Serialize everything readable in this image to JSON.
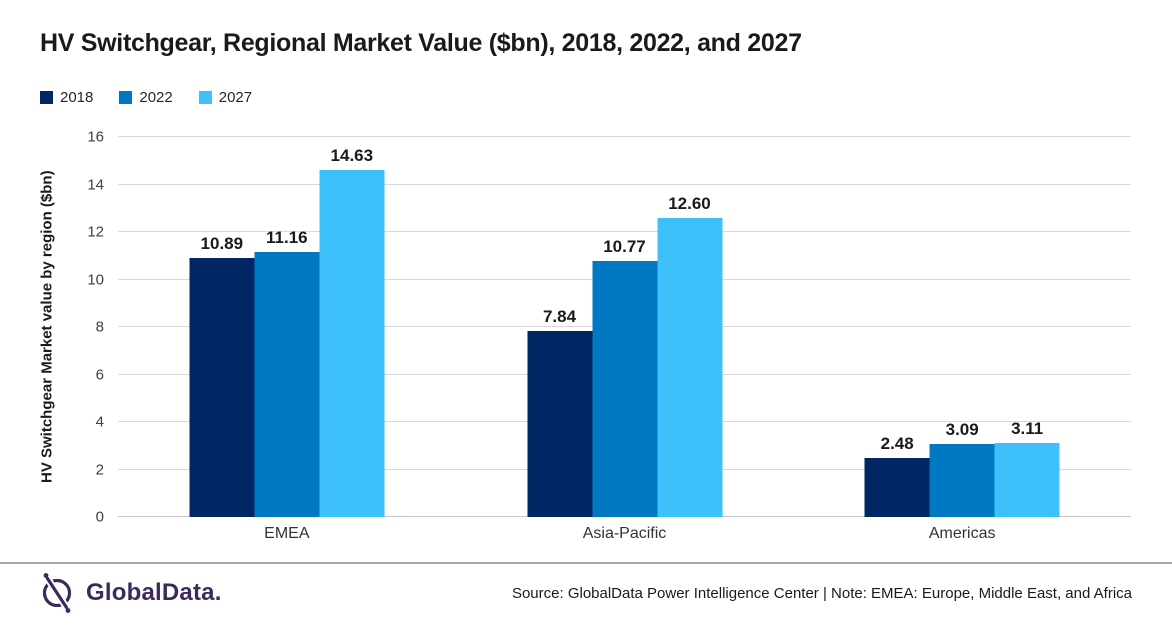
{
  "page": {
    "title": "HV Switchgear, Regional Market Value ($bn), 2018, 2022, and 2027"
  },
  "chart_data": {
    "type": "bar",
    "title": "HV Switchgear, Regional Market Value ($bn), 2018, 2022, and 2027",
    "categories": [
      "EMEA",
      "Asia-Pacific",
      "Americas"
    ],
    "series": [
      {
        "name": "2018",
        "color": "#002664",
        "values": [
          10.89,
          7.84,
          2.48
        ]
      },
      {
        "name": "2022",
        "color": "#0079c2",
        "values": [
          11.16,
          10.77,
          3.09
        ]
      },
      {
        "name": "2027",
        "color": "#3ec1fb",
        "values": [
          14.63,
          12.6,
          3.11
        ]
      }
    ],
    "xlabel": "",
    "ylabel": "HV Switchgear Market value by region ($bn)",
    "ylim": [
      0,
      16
    ],
    "ytick_step": 2,
    "yticks": [
      0,
      2,
      4,
      6,
      8,
      10,
      12,
      14,
      16
    ],
    "grid": true,
    "legend_position": "top-left",
    "value_label_decimals": 2
  },
  "footer": {
    "logo_text": "GlobalData.",
    "source_text": "Source: GlobalData Power Intelligence Center | Note: EMEA: Europe, Middle East, and Africa"
  },
  "colors": {
    "series_2018": "#002664",
    "series_2022": "#0079c2",
    "series_2027": "#3ec1fb",
    "gridline": "#d9d9d9",
    "footer_divider": "#a6a6a6",
    "logo_purple": "#3b2a5c",
    "text": "#1a1a1a"
  }
}
